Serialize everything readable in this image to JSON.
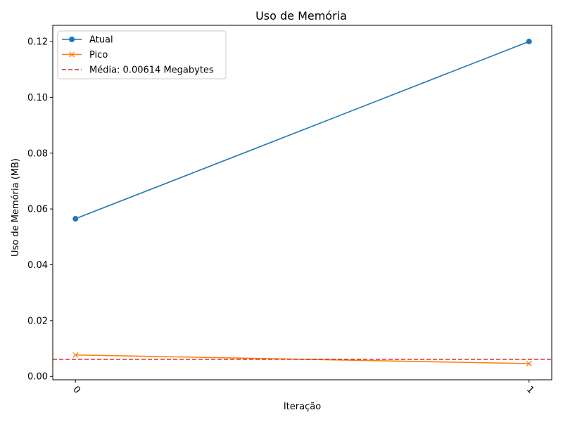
{
  "chart_data": {
    "type": "line",
    "title": "Uso de Memória",
    "xlabel": "Iteração",
    "ylabel": "Uso de Memória (MB)",
    "x": [
      0,
      1
    ],
    "x_tick_labels": [
      "0",
      "1"
    ],
    "xlim": [
      -0.05,
      1.05
    ],
    "ylim": [
      -0.0012,
      0.1258
    ],
    "y_ticks": [
      0.0,
      0.02,
      0.04,
      0.06,
      0.08,
      0.1,
      0.12
    ],
    "y_tick_labels": [
      "0.00",
      "0.02",
      "0.04",
      "0.06",
      "0.08",
      "0.10",
      "0.12"
    ],
    "grid": false,
    "legend_position": "upper-left",
    "series": [
      {
        "name": "Atual",
        "values": [
          0.0565,
          0.12
        ],
        "color": "#1f77b4",
        "marker": "circle"
      },
      {
        "name": "Pico",
        "values": [
          0.0077,
          0.0046
        ],
        "color": "#ff7f0e",
        "marker": "x"
      }
    ],
    "reference_lines": [
      {
        "label": "Média: 0.00614 Megabytes",
        "y": 0.00614,
        "color": "#d62728",
        "style": "dashed"
      }
    ]
  }
}
